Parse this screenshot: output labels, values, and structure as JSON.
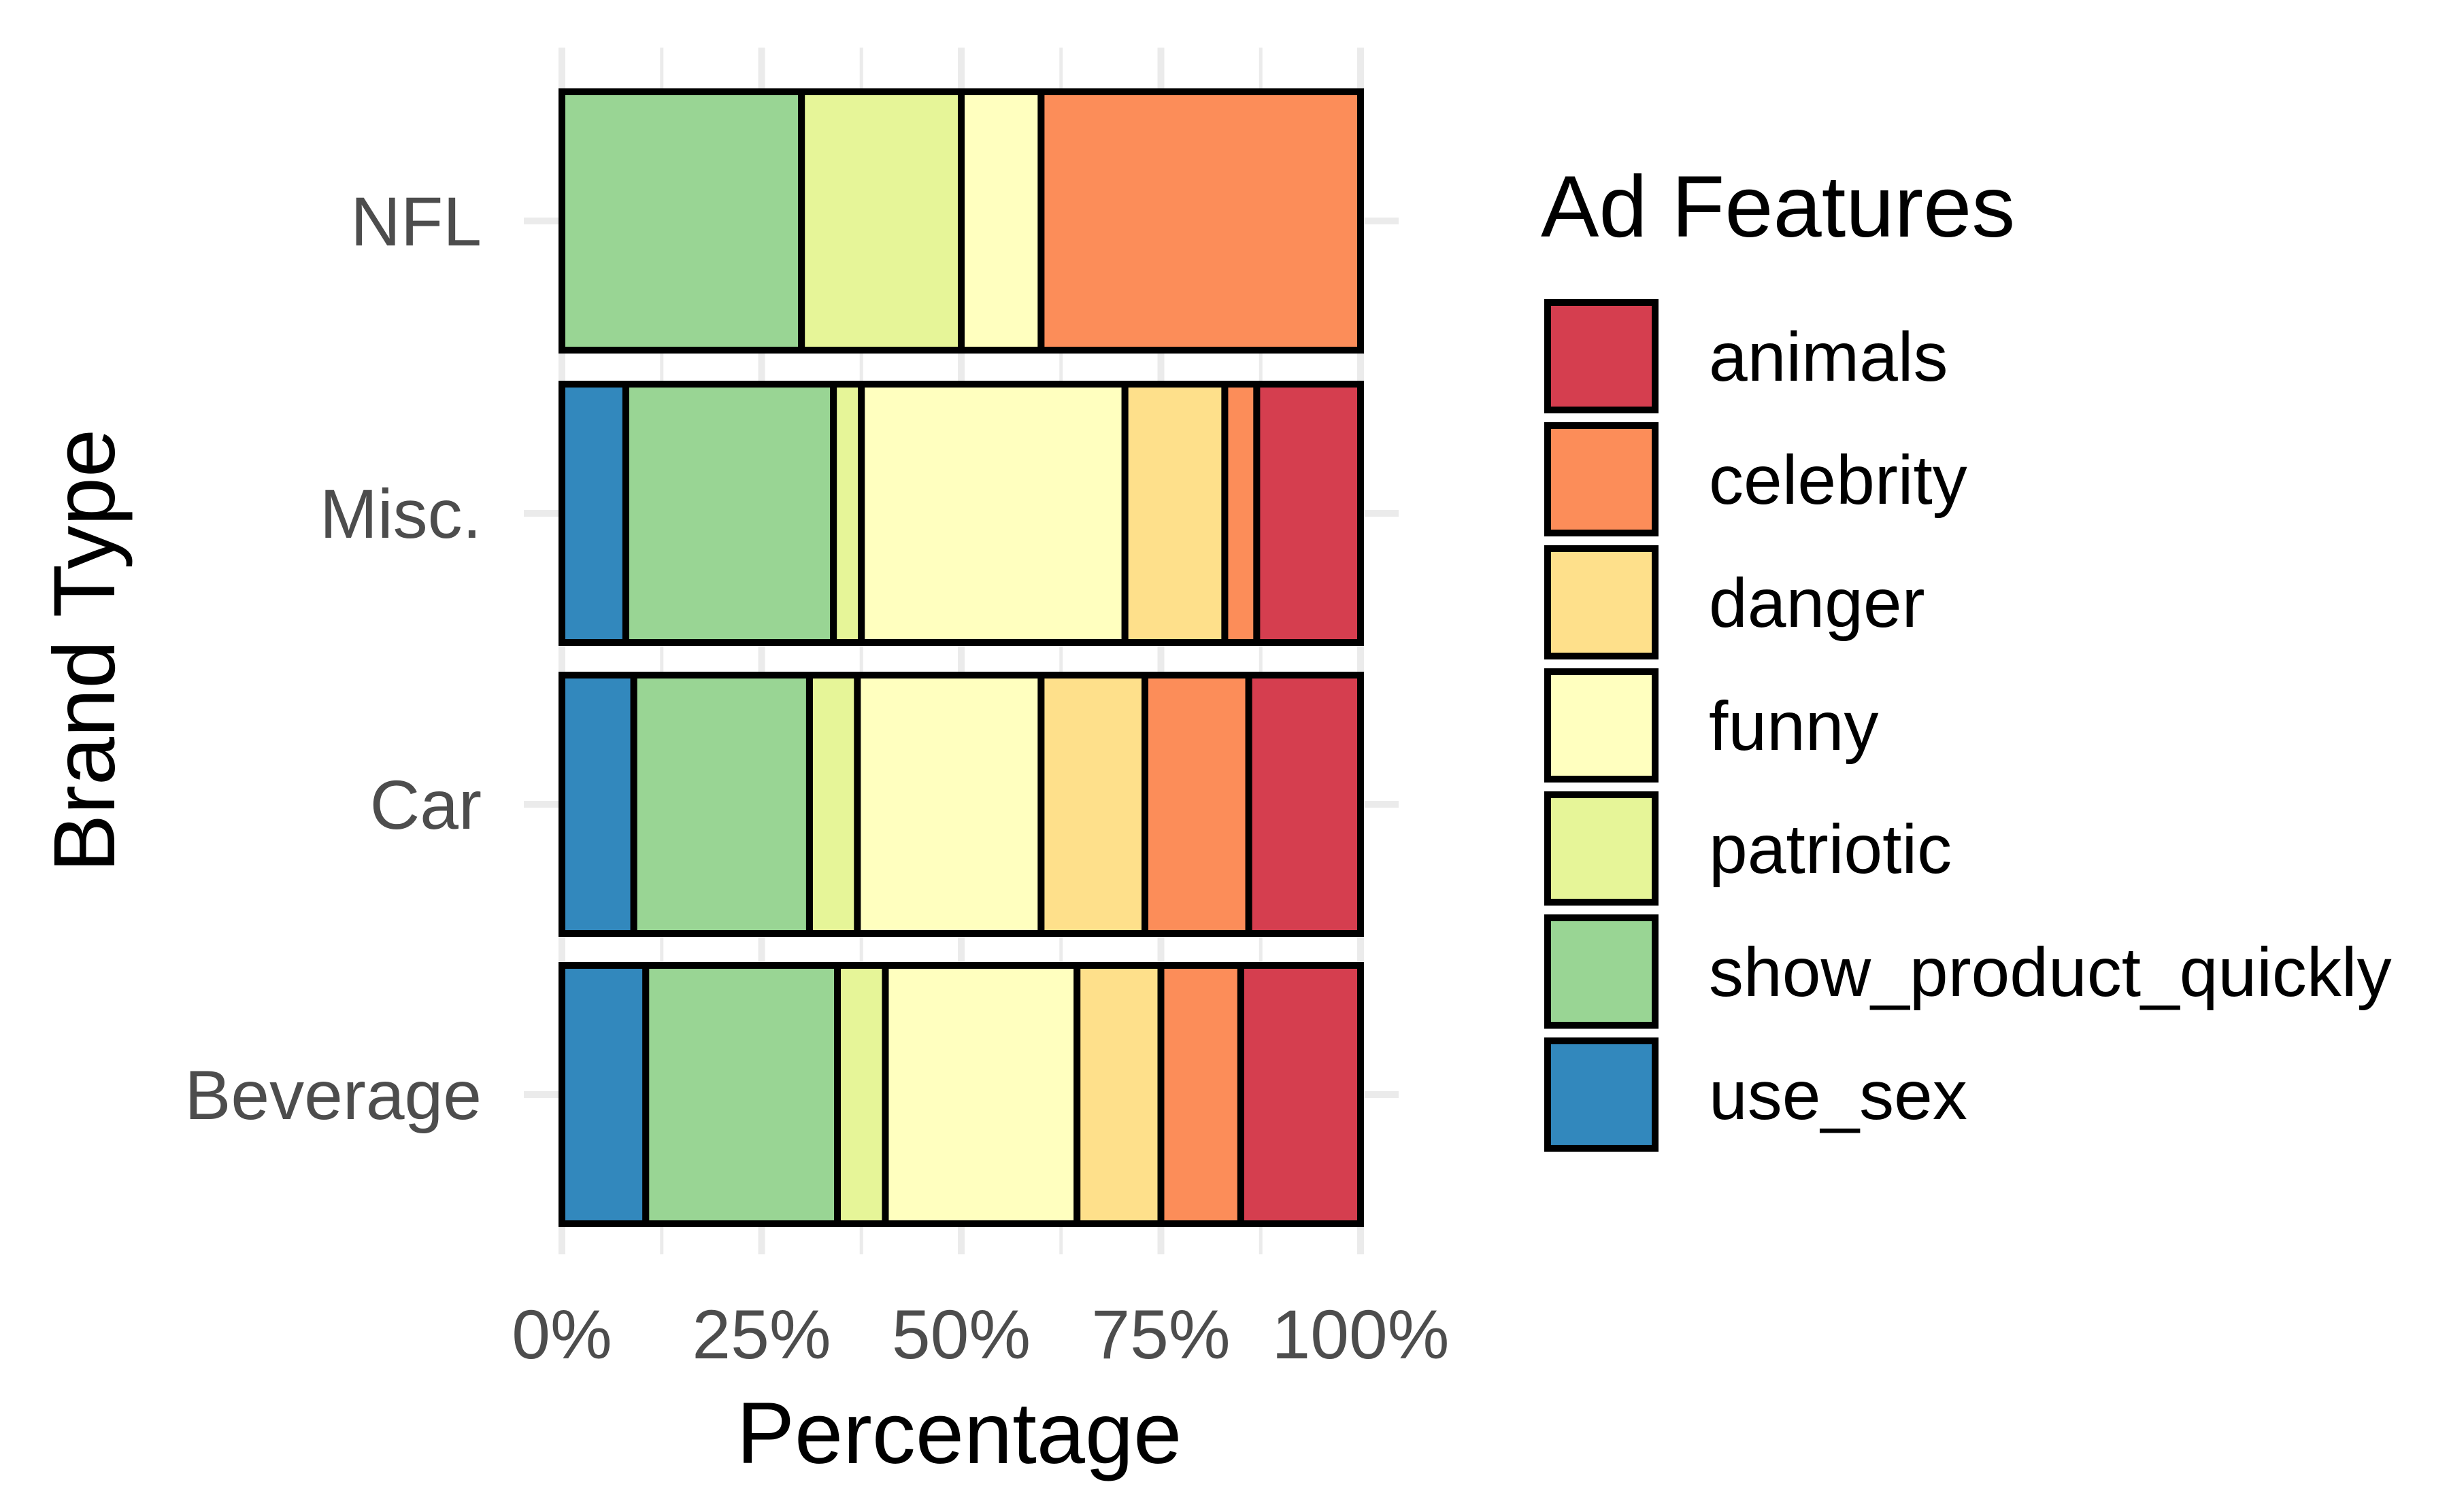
{
  "chart_data": {
    "type": "bar",
    "orientation": "horizontal",
    "stacked": "percent",
    "xlabel": "Percentage",
    "ylabel": "Brand Type",
    "xlim": [
      0,
      100
    ],
    "x_ticks": [
      "0%",
      "25%",
      "50%",
      "75%",
      "100%"
    ],
    "grid": true,
    "legend_position": "right",
    "legend_title": "Ad Features",
    "categories": [
      "Beverage",
      "Car",
      "Misc.",
      "NFL"
    ],
    "series": [
      {
        "name": "use_sex",
        "color": "#3288BD",
        "values": [
          10.5,
          9,
          8,
          0
        ]
      },
      {
        "name": "show_product_quickly",
        "color": "#99D594",
        "values": [
          24,
          22,
          26,
          30
        ]
      },
      {
        "name": "patriotic",
        "color": "#E6F598",
        "values": [
          6,
          6,
          3.5,
          20
        ]
      },
      {
        "name": "funny",
        "color": "#FFFFBF",
        "values": [
          24,
          23,
          33,
          10
        ]
      },
      {
        "name": "danger",
        "color": "#FEE08B",
        "values": [
          10.5,
          13,
          12.5,
          0
        ]
      },
      {
        "name": "celebrity",
        "color": "#FC8D59",
        "values": [
          10,
          13,
          4,
          40
        ]
      },
      {
        "name": "animals",
        "color": "#D53E4F",
        "values": [
          15,
          14,
          13,
          0
        ]
      }
    ],
    "legend_order": [
      "animals",
      "celebrity",
      "danger",
      "funny",
      "patriotic",
      "show_product_quickly",
      "use_sex"
    ]
  }
}
